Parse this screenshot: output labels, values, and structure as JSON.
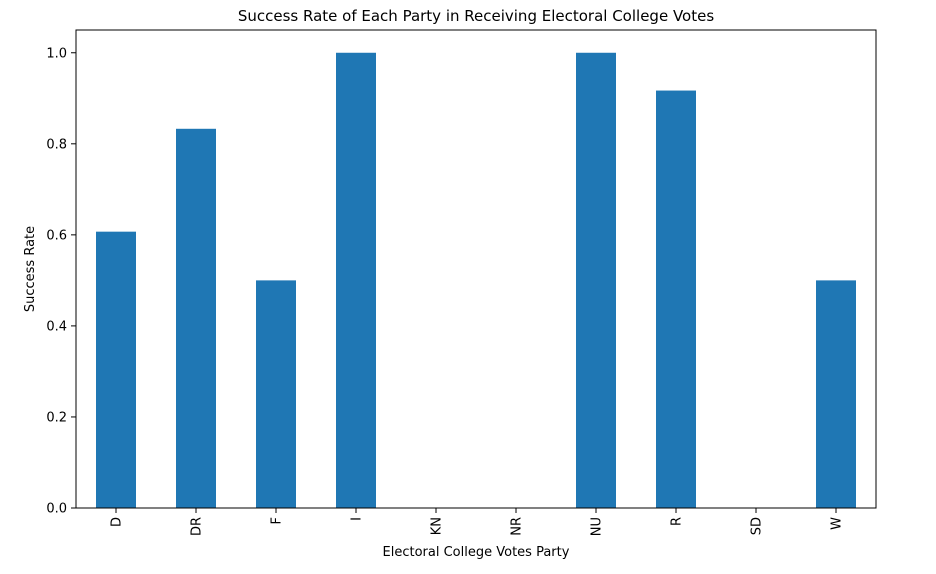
{
  "chart_data": {
    "type": "bar",
    "title": "Success Rate of Each Party in Receiving Electoral College Votes",
    "xlabel": "Electoral College Votes Party",
    "ylabel": "Success Rate",
    "categories": [
      "D",
      "DR",
      "F",
      "I",
      "KN",
      "NR",
      "NU",
      "R",
      "SD",
      "W"
    ],
    "values": [
      0.607,
      0.833,
      0.5,
      1.0,
      0.0,
      0.0,
      1.0,
      0.917,
      0.0,
      0.5
    ],
    "yticks": [
      "0.0",
      "0.2",
      "0.4",
      "0.6",
      "0.8",
      "1.0"
    ],
    "ylim": [
      0,
      1.05
    ],
    "grid": false,
    "bar_color": "#1f77b4"
  }
}
